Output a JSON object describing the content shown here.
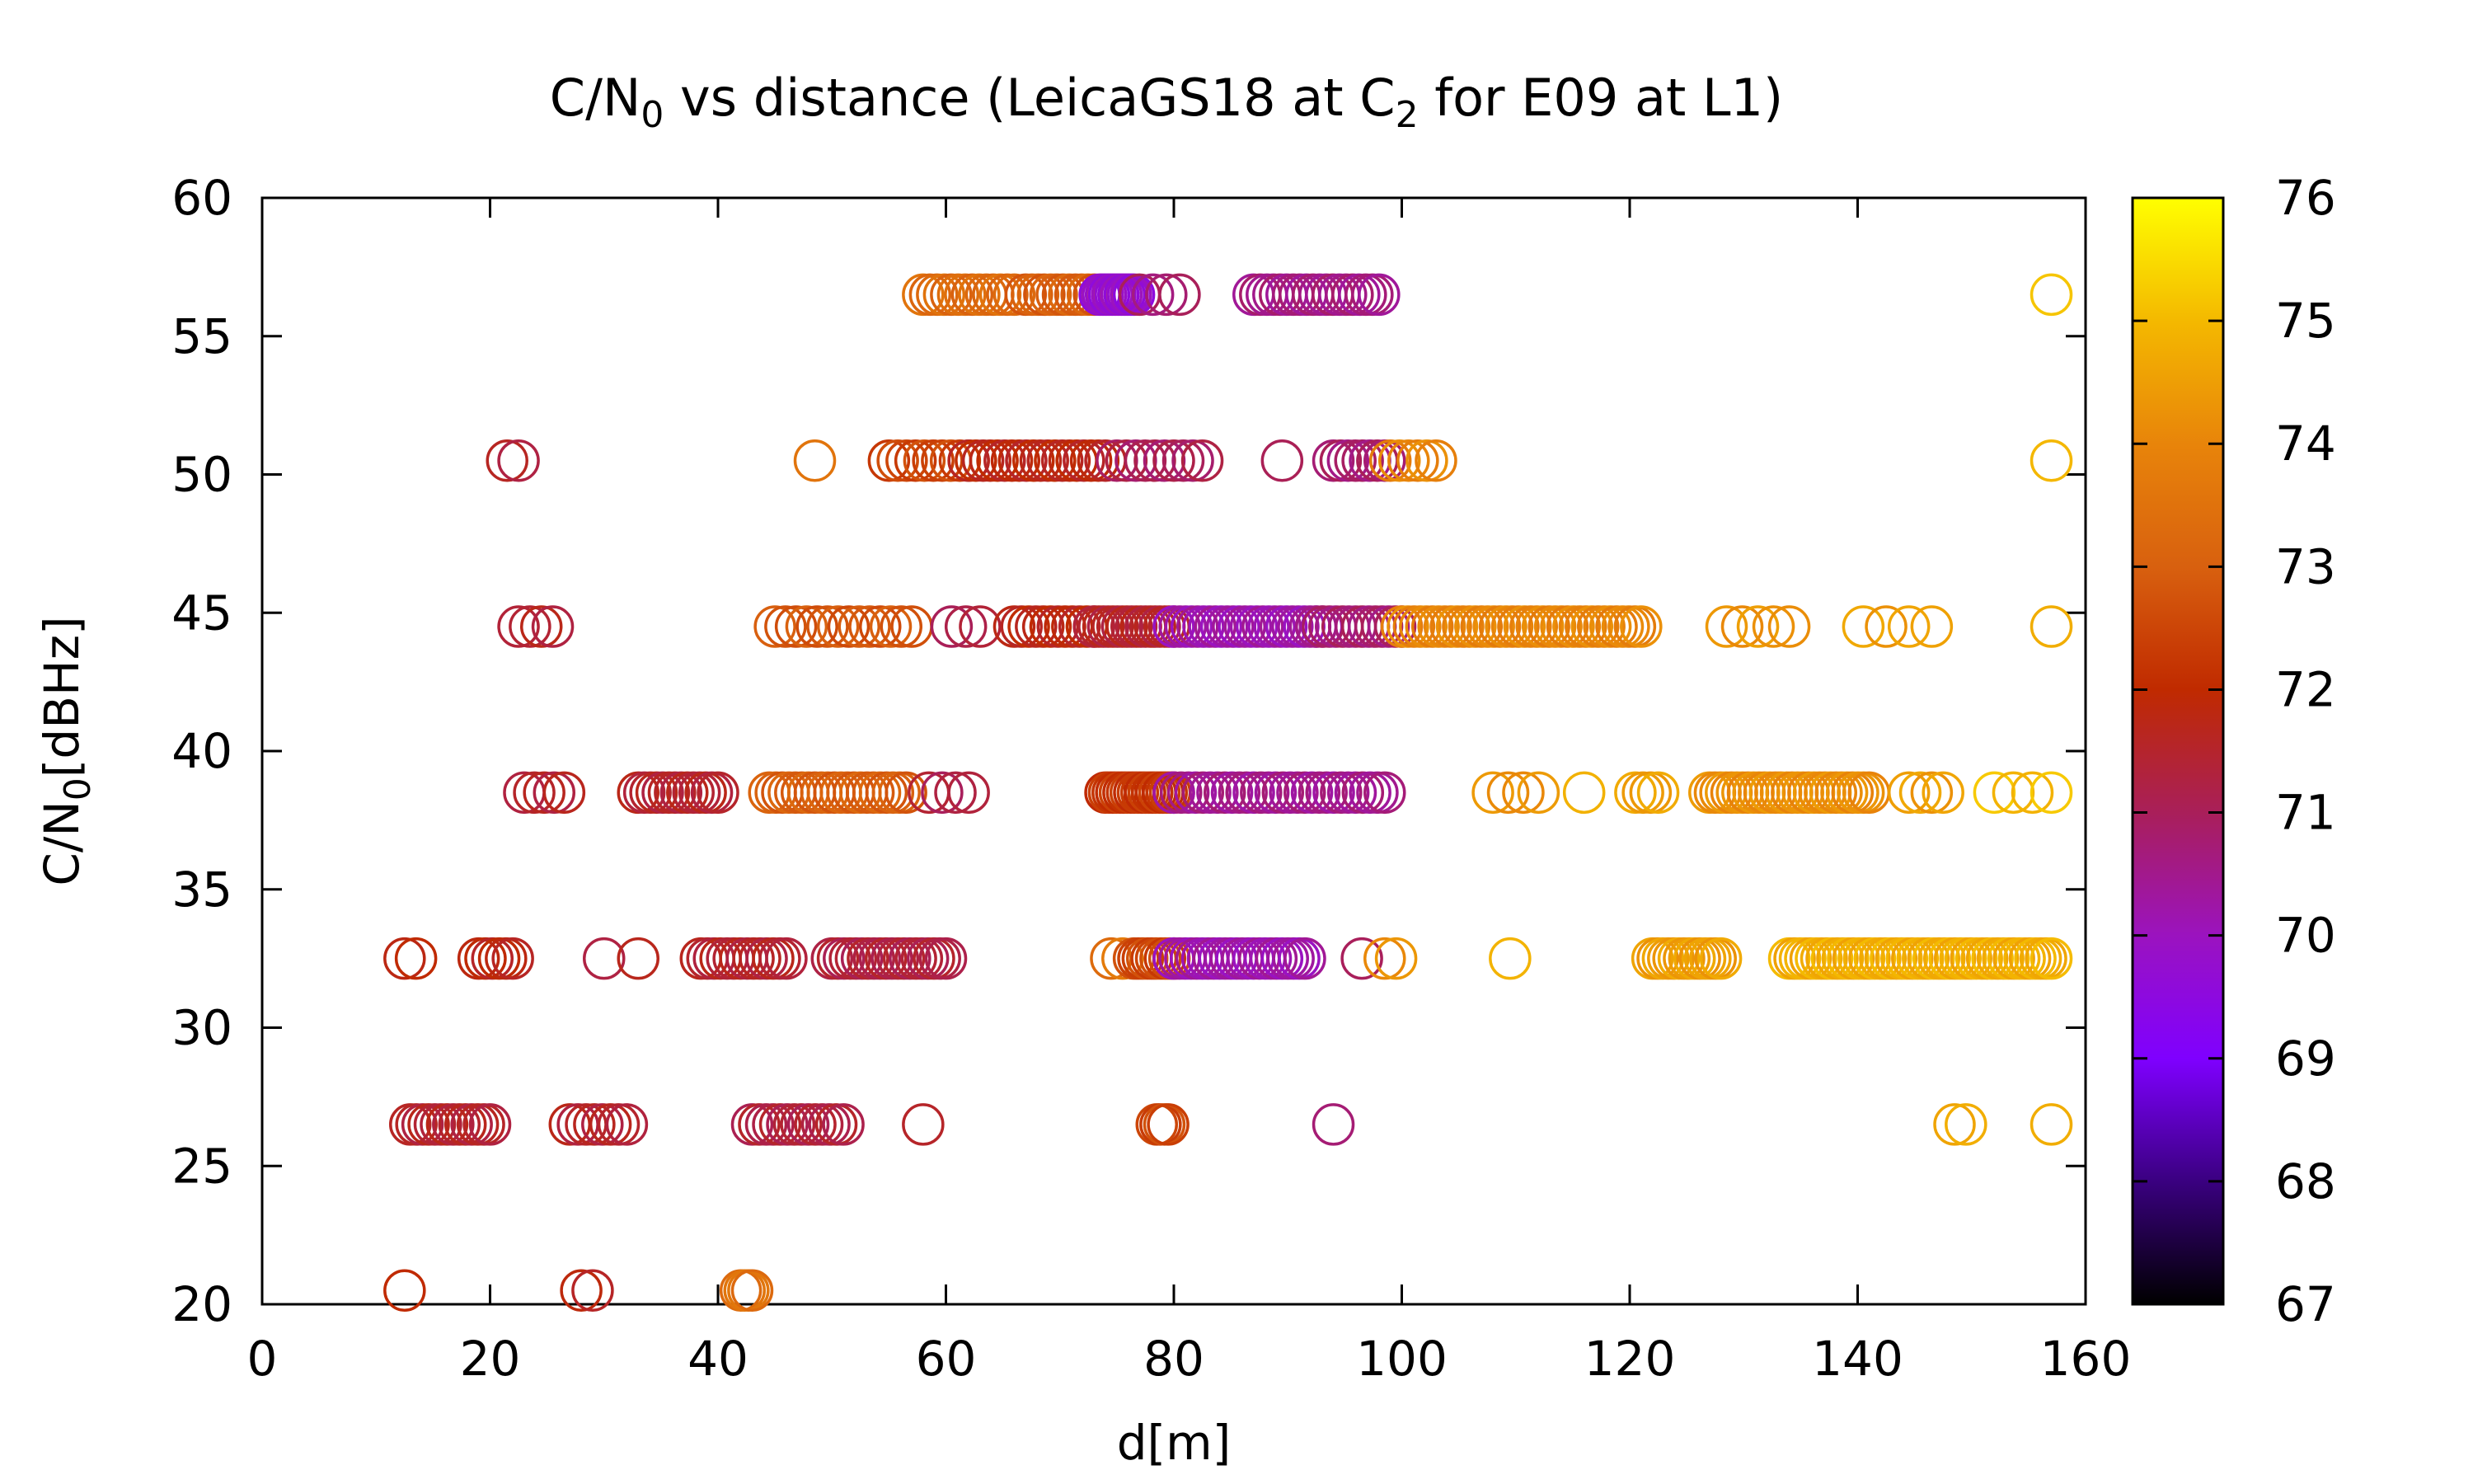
{
  "chart_data": {
    "type": "scatter",
    "title": {
      "prefix": "C/N",
      "prefix_sub": "0",
      "middle": " vs distance (LeicaGS18 at C",
      "middle_sub": "2",
      "suffix": " for E09 at L1)"
    },
    "xlabel": "d[m]",
    "ylabel": {
      "main": "C/N",
      "sub": "0",
      "rest": "[dBHz]"
    },
    "xlim": [
      0,
      160
    ],
    "ylim": [
      20,
      60
    ],
    "xticks": [
      "0",
      "20",
      "40",
      "60",
      "80",
      "100",
      "120",
      "140",
      "160"
    ],
    "yticks": [
      "20",
      "25",
      "30",
      "35",
      "40",
      "45",
      "50",
      "55",
      "60"
    ],
    "colorbar": {
      "min": 67,
      "max": 76,
      "ticks": [
        "67",
        "68",
        "69",
        "70",
        "71",
        "72",
        "73",
        "74",
        "75",
        "76"
      ],
      "palette": [
        "#000000",
        "#3a0080",
        "#7f00ff",
        "#9b13bf",
        "#a91f5a",
        "#c02a00",
        "#d8600f",
        "#e8840a",
        "#f4b800",
        "#ffff00"
      ]
    },
    "grid": false,
    "rows": [
      {
        "y": 56.5,
        "groups": [
          {
            "x0": 58,
            "x1": 66,
            "n": 14,
            "c": 73.3
          },
          {
            "x0": 67,
            "x1": 73,
            "n": 12,
            "c": 73.0
          },
          {
            "x0": 73.5,
            "x1": 76.5,
            "n": 12,
            "c": 69.8
          },
          {
            "x0": 77,
            "x1": 80.5,
            "n": 4,
            "c": 70.8
          },
          {
            "x0": 87,
            "x1": 98,
            "n": 20,
            "c": 70.6
          }
        ]
      },
      {
        "y": 50.5,
        "groups": [
          {
            "x0": 21.5,
            "x1": 22.5,
            "n": 2,
            "c": 71.5
          },
          {
            "x0": 48.5,
            "x1": 48.5,
            "n": 1,
            "c": 73.8
          },
          {
            "x0": 55,
            "x1": 62,
            "n": 10,
            "c": 72.5
          },
          {
            "x0": 62,
            "x1": 74,
            "n": 20,
            "c": 71.8
          },
          {
            "x0": 75,
            "x1": 82.5,
            "n": 10,
            "c": 71.0
          },
          {
            "x0": 89.5,
            "x1": 89.5,
            "n": 1,
            "c": 70.8
          },
          {
            "x0": 94,
            "x1": 98.5,
            "n": 8,
            "c": 70.8
          },
          {
            "x0": 99,
            "x1": 103,
            "n": 6,
            "c": 74.0
          }
        ]
      },
      {
        "y": 44.5,
        "groups": [
          {
            "x0": 22.5,
            "x1": 25.5,
            "n": 4,
            "c": 71.5
          },
          {
            "x0": 45,
            "x1": 57,
            "n": 14,
            "c": 72.8
          },
          {
            "x0": 60.5,
            "x1": 63,
            "n": 3,
            "c": 71.2
          },
          {
            "x0": 66,
            "x1": 73,
            "n": 12,
            "c": 71.8
          },
          {
            "x0": 73,
            "x1": 80,
            "n": 18,
            "c": 71.5
          },
          {
            "x0": 80,
            "x1": 93,
            "n": 26,
            "c": 70.2
          },
          {
            "x0": 92.5,
            "x1": 100,
            "n": 14,
            "c": 70.8
          },
          {
            "x0": 100,
            "x1": 121,
            "n": 40,
            "c": 74.0
          },
          {
            "x0": 128.5,
            "x1": 134,
            "n": 5,
            "c": 74.3
          },
          {
            "x0": 140.5,
            "x1": 146.5,
            "n": 4,
            "c": 74.5
          },
          {
            "x0": 157,
            "x1": 157,
            "n": 1,
            "c": 74.8
          }
        ]
      },
      {
        "y": 38.5,
        "groups": [
          {
            "x0": 23,
            "x1": 26.5,
            "n": 5,
            "c": 71.5
          },
          {
            "x0": 33,
            "x1": 40,
            "n": 14,
            "c": 71.5
          },
          {
            "x0": 44.5,
            "x1": 56.5,
            "n": 22,
            "c": 73.0
          },
          {
            "x0": 58.5,
            "x1": 62,
            "n": 4,
            "c": 71.2
          },
          {
            "x0": 74,
            "x1": 80,
            "n": 20,
            "c": 72.2
          },
          {
            "x0": 80,
            "x1": 98.5,
            "n": 30,
            "c": 70.5
          },
          {
            "x0": 108,
            "x1": 112,
            "n": 4,
            "c": 74.2
          },
          {
            "x0": 116,
            "x1": 116,
            "n": 1,
            "c": 74.8
          },
          {
            "x0": 120.5,
            "x1": 122.5,
            "n": 4,
            "c": 74.5
          },
          {
            "x0": 127,
            "x1": 141,
            "n": 30,
            "c": 74.2
          },
          {
            "x0": 144.5,
            "x1": 147.5,
            "n": 4,
            "c": 74.5
          },
          {
            "x0": 152,
            "x1": 157,
            "n": 4,
            "c": 75.0
          }
        ]
      },
      {
        "y": 32.5,
        "groups": [
          {
            "x0": 12.5,
            "x1": 13.5,
            "n": 2,
            "c": 71.8
          },
          {
            "x0": 19,
            "x1": 22,
            "n": 6,
            "c": 71.8
          },
          {
            "x0": 30,
            "x1": 33,
            "n": 2,
            "c": 71.5
          },
          {
            "x0": 38.5,
            "x1": 46,
            "n": 14,
            "c": 71.5
          },
          {
            "x0": 50,
            "x1": 60,
            "n": 20,
            "c": 71.3
          },
          {
            "x0": 74.5,
            "x1": 75.5,
            "n": 2,
            "c": 73.5
          },
          {
            "x0": 76.5,
            "x1": 80,
            "n": 10,
            "c": 72.5
          },
          {
            "x0": 80,
            "x1": 91.5,
            "n": 24,
            "c": 70.2
          },
          {
            "x0": 96.5,
            "x1": 96.5,
            "n": 1,
            "c": 70.8
          },
          {
            "x0": 98.5,
            "x1": 99.5,
            "n": 2,
            "c": 74.3
          },
          {
            "x0": 109.5,
            "x1": 109.5,
            "n": 1,
            "c": 74.8
          },
          {
            "x0": 122,
            "x1": 128,
            "n": 14,
            "c": 74.5
          },
          {
            "x0": 134,
            "x1": 157,
            "n": 50,
            "c": 74.8
          }
        ]
      },
      {
        "y": 26.5,
        "groups": [
          {
            "x0": 13,
            "x1": 20,
            "n": 14,
            "c": 71.5
          },
          {
            "x0": 27,
            "x1": 32,
            "n": 8,
            "c": 71.5
          },
          {
            "x0": 43,
            "x1": 51,
            "n": 14,
            "c": 71.3
          },
          {
            "x0": 58,
            "x1": 58,
            "n": 1,
            "c": 71.3
          },
          {
            "x0": 78.5,
            "x1": 79.5,
            "n": 4,
            "c": 72.5
          },
          {
            "x0": 94,
            "x1": 94,
            "n": 1,
            "c": 70.8
          },
          {
            "x0": 148.5,
            "x1": 149.5,
            "n": 2,
            "c": 74.8
          },
          {
            "x0": 157,
            "x1": 157,
            "n": 1,
            "c": 74.8
          }
        ]
      },
      {
        "y": 20.5,
        "groups": [
          {
            "x0": 12.5,
            "x1": 12.5,
            "n": 1,
            "c": 72.0
          },
          {
            "x0": 28,
            "x1": 29,
            "n": 2,
            "c": 71.8
          },
          {
            "x0": 42,
            "x1": 43,
            "n": 4,
            "c": 73.5
          }
        ]
      },
      {
        "y": 56.5,
        "groups": [
          {
            "x0": 157,
            "x1": 157,
            "n": 1,
            "c": 75.2
          }
        ]
      },
      {
        "y": 50.5,
        "groups": [
          {
            "x0": 157,
            "x1": 157,
            "n": 1,
            "c": 75.0
          }
        ]
      }
    ]
  }
}
